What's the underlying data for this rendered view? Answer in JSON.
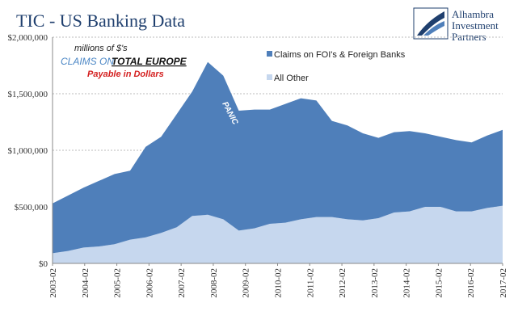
{
  "chart_data": {
    "type": "area",
    "title": "TIC - US Banking Data",
    "xlabel": "",
    "ylabel": "",
    "ylim": [
      0,
      2000000
    ],
    "yticks": [
      "$0",
      "$500,000",
      "$1,000,000",
      "$1,500,000",
      "$2,000,000"
    ],
    "xticks": [
      "2003-02",
      "2004-02",
      "2005-02",
      "2006-02",
      "2007-02",
      "2008-02",
      "2009-02",
      "2010-02",
      "2011-02",
      "2012-02",
      "2013-02",
      "2014-02",
      "2015-02",
      "2016-02",
      "2017-02"
    ],
    "grid": "horizontal dashed",
    "stacked": true,
    "x": [
      "2003-02",
      "2003-08",
      "2004-02",
      "2004-08",
      "2005-02",
      "2005-08",
      "2006-02",
      "2006-08",
      "2007-02",
      "2007-08",
      "2008-02",
      "2008-08",
      "2009-02",
      "2009-08",
      "2010-02",
      "2010-08",
      "2011-02",
      "2011-08",
      "2012-02",
      "2012-08",
      "2013-02",
      "2013-08",
      "2014-02",
      "2014-08",
      "2015-02",
      "2015-08",
      "2016-02",
      "2016-08",
      "2017-02",
      "2017-05"
    ],
    "series": [
      {
        "name": "All Other",
        "color": "#c6d7ee",
        "values": [
          90000,
          110000,
          140000,
          150000,
          170000,
          210000,
          230000,
          270000,
          320000,
          420000,
          430000,
          390000,
          290000,
          310000,
          350000,
          360000,
          390000,
          410000,
          410000,
          390000,
          380000,
          400000,
          450000,
          460000,
          500000,
          500000,
          460000,
          460000,
          490000,
          510000
        ]
      },
      {
        "name": "Claims on FOI's & Foreign Banks",
        "color": "#4f7fba",
        "values": [
          440000,
          490000,
          530000,
          580000,
          620000,
          610000,
          800000,
          850000,
          1000000,
          1100000,
          1350000,
          1270000,
          1060000,
          1050000,
          1010000,
          1050000,
          1070000,
          1030000,
          850000,
          830000,
          770000,
          710000,
          710000,
          710000,
          650000,
          620000,
          630000,
          610000,
          640000,
          670000
        ]
      }
    ],
    "annotations": {
      "units": "millions of $'s",
      "claims_on": "CLAIMS ON",
      "total_europe": "TOTAL EUROPE",
      "payable": "Payable in Dollars",
      "panic": "PANIC"
    },
    "logo": {
      "line1": "Alhambra",
      "line2": "Investment",
      "line3": "Partners"
    },
    "colors": {
      "title": "#1f3f6e",
      "claims_on": "#4a86c5",
      "payable": "#d42020",
      "grid": "#bbbbbb"
    }
  }
}
